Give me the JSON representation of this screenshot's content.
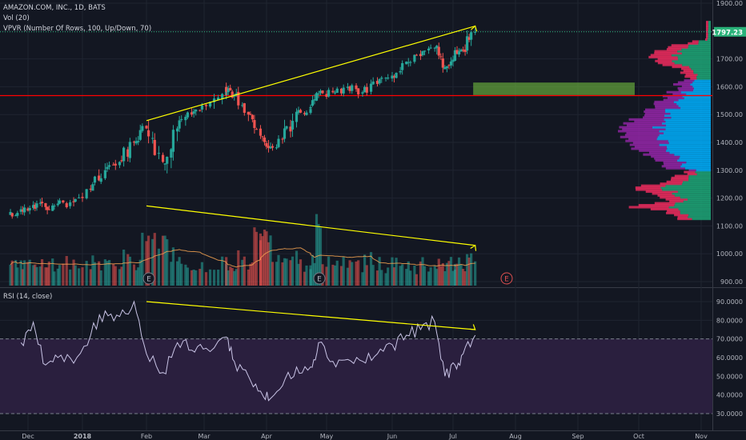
{
  "header": {
    "symbol_line": "AMAZON.COM, INC., 1D, BATS",
    "volume_line": "Vol (20)",
    "vpvr_line": "VPVR (Number Of Rows, 100, Up/Down, 70)"
  },
  "rsi_legend": "RSI (14, close)",
  "last_price_label": "1797.23",
  "earnings_marker": "E",
  "colors": {
    "background": "#131722",
    "up": "#26a69a",
    "down": "#ef5350",
    "trendline": "#ffff00",
    "support": "#ff0000",
    "rsi_line": "#c9c4e6",
    "rsi_band": "#2a1f3e",
    "zone": "#73c040",
    "profile_up": "#1ea878",
    "profile_down": "#ff2e63",
    "profile_value_up": "#00b0ff",
    "profile_value_down": "#9c27b0",
    "last_price": "#2ab37a"
  },
  "chart_data": [
    {
      "type": "candlestick",
      "title": "AMAZON.COM, INC., 1D, BATS",
      "x_tick_labels": [
        "Dec",
        "2018",
        "Feb",
        "Mar",
        "Apr",
        "May",
        "Jun",
        "Jul",
        "Aug",
        "Sep",
        "Oct",
        "Nov"
      ],
      "y_tick_labels": [
        "900.00",
        "1000.00",
        "1100.00",
        "1200.00",
        "1300.00",
        "1400.00",
        "1500.00",
        "1600.00",
        "1700.00",
        "1800.00",
        "1900.00"
      ],
      "ylim": [
        890,
        1910
      ],
      "last_price": 1797.23,
      "horizontal_lines": [
        {
          "price": 1568,
          "color": "#ff0000"
        }
      ],
      "zone": {
        "from_date": "2018-07-11",
        "to_date": "2018-09-29",
        "price_low": 1570,
        "price_high": 1615
      },
      "trendlines": [
        {
          "name": "price resistance",
          "from": [
            "2018-02-01",
            1478
          ],
          "to": [
            "2018-07-12",
            1818
          ]
        },
        {
          "name": "volume decline",
          "from": [
            "2018-02-01",
            1172
          ],
          "to": [
            "2018-07-12",
            1030
          ]
        }
      ],
      "closes_reference": [
        {
          "date": "2017-11-27",
          "close": 1160
        },
        {
          "date": "2017-12-04",
          "close": 1175
        },
        {
          "date": "2017-12-11",
          "close": 1168
        },
        {
          "date": "2017-12-18",
          "close": 1180
        },
        {
          "date": "2017-12-27",
          "close": 1185
        },
        {
          "date": "2018-01-05",
          "close": 1230
        },
        {
          "date": "2018-01-12",
          "close": 1300
        },
        {
          "date": "2018-01-19",
          "close": 1330
        },
        {
          "date": "2018-01-26",
          "close": 1400
        },
        {
          "date": "2018-02-01",
          "close": 1450
        },
        {
          "date": "2018-02-09",
          "close": 1330
        },
        {
          "date": "2018-02-16",
          "close": 1450
        },
        {
          "date": "2018-02-23",
          "close": 1500
        },
        {
          "date": "2018-03-02",
          "close": 1530
        },
        {
          "date": "2018-03-12",
          "close": 1598
        },
        {
          "date": "2018-03-16",
          "close": 1570
        },
        {
          "date": "2018-03-23",
          "close": 1500
        },
        {
          "date": "2018-03-29",
          "close": 1445
        },
        {
          "date": "2018-04-02",
          "close": 1380
        },
        {
          "date": "2018-04-09",
          "close": 1410
        },
        {
          "date": "2018-04-16",
          "close": 1510
        },
        {
          "date": "2018-04-23",
          "close": 1520
        },
        {
          "date": "2018-04-27",
          "close": 1575
        },
        {
          "date": "2018-05-04",
          "close": 1580
        },
        {
          "date": "2018-05-11",
          "close": 1600
        },
        {
          "date": "2018-05-18",
          "close": 1580
        },
        {
          "date": "2018-05-25",
          "close": 1610
        },
        {
          "date": "2018-06-01",
          "close": 1640
        },
        {
          "date": "2018-06-08",
          "close": 1690
        },
        {
          "date": "2018-06-15",
          "close": 1710
        },
        {
          "date": "2018-06-22",
          "close": 1740
        },
        {
          "date": "2018-06-27",
          "close": 1670
        },
        {
          "date": "2018-07-02",
          "close": 1713
        },
        {
          "date": "2018-07-06",
          "close": 1730
        },
        {
          "date": "2018-07-12",
          "close": 1797
        }
      ]
    },
    {
      "type": "line",
      "title": "RSI (14, close)",
      "y_tick_labels": [
        "30.0000",
        "40.0000",
        "50.0000",
        "60.0000",
        "70.0000",
        "80.0000",
        "90.0000"
      ],
      "ylim": [
        25,
        95
      ],
      "band": [
        30,
        70
      ],
      "trendlines": [
        {
          "name": "RSI decline",
          "from": [
            "2018-02-01",
            90
          ],
          "to": [
            "2018-07-12",
            75
          ]
        }
      ],
      "x": [
        "2017-11-27",
        "2017-12-04",
        "2017-12-11",
        "2017-12-18",
        "2017-12-27",
        "2018-01-05",
        "2018-01-12",
        "2018-01-19",
        "2018-01-26",
        "2018-02-01",
        "2018-02-09",
        "2018-02-16",
        "2018-02-23",
        "2018-03-02",
        "2018-03-12",
        "2018-03-16",
        "2018-03-23",
        "2018-03-29",
        "2018-04-02",
        "2018-04-09",
        "2018-04-16",
        "2018-04-23",
        "2018-04-27",
        "2018-05-04",
        "2018-05-11",
        "2018-05-18",
        "2018-05-25",
        "2018-06-01",
        "2018-06-08",
        "2018-06-15",
        "2018-06-22",
        "2018-06-27",
        "2018-07-02",
        "2018-07-06",
        "2018-07-12"
      ],
      "values": [
        68,
        79,
        56,
        60,
        57,
        72,
        85,
        82,
        90,
        62,
        52,
        68,
        64,
        65,
        71,
        58,
        50,
        42,
        37,
        45,
        55,
        55,
        68,
        58,
        59,
        58,
        62,
        67,
        72,
        75,
        79,
        50,
        56,
        62,
        72
      ]
    }
  ]
}
